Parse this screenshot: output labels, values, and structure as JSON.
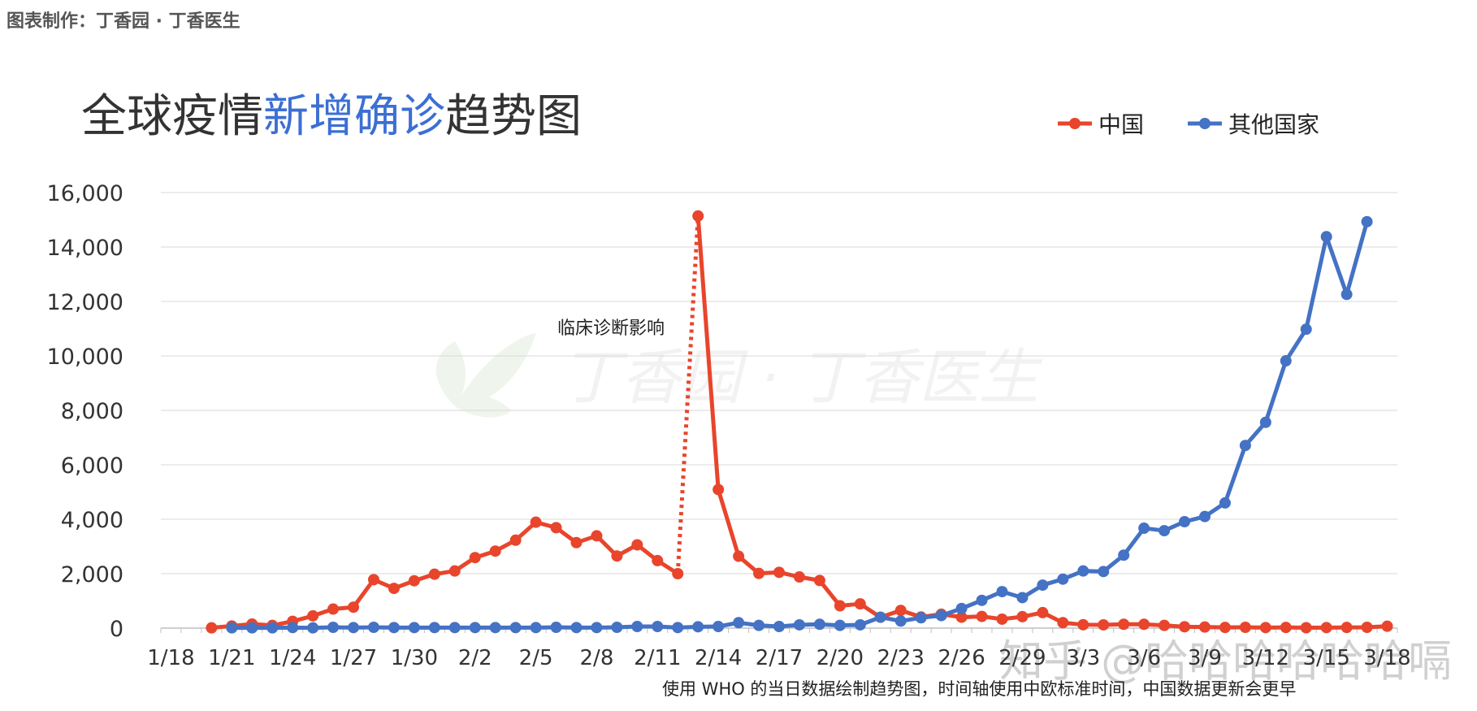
{
  "credit": "图表制作：丁香园 · 丁香医生",
  "title": {
    "part1": "全球疫情",
    "highlight": "新增确诊",
    "part2": "趋势图"
  },
  "legend": [
    {
      "name": "中国",
      "color": "#e8452c"
    },
    {
      "name": "其他国家",
      "color": "#4472c4"
    }
  ],
  "annotation": "临床诊断影响",
  "footnote": "使用 WHO 的当日数据绘制趋势图，时间轴使用中欧标准时间，中国数据更新会更早",
  "watermark": {
    "center": "丁香园 · 丁香医生",
    "corner": "知乎 @哈哈哈哈哈哈嗝"
  },
  "chart_data": {
    "type": "line",
    "title": "全球疫情新增确诊趋势图",
    "x_tick_labels": [
      "1/18",
      "1/21",
      "1/24",
      "1/27",
      "1/30",
      "2/2",
      "2/5",
      "2/8",
      "2/11",
      "2/14",
      "2/17",
      "2/20",
      "2/23",
      "2/26",
      "2/29",
      "3/3",
      "3/6",
      "3/9",
      "3/12",
      "3/15",
      "3/18"
    ],
    "ylim": [
      0,
      16000
    ],
    "y_ticks": [
      "0",
      "2,000",
      "4,000",
      "6,000",
      "8,000",
      "10,000",
      "12,000",
      "14,000",
      "16,000"
    ],
    "grid": true,
    "legend_position": "top-right",
    "series": [
      {
        "name": "中国",
        "color": "#e8452c",
        "start": "1/20",
        "values": [
          10,
          80,
          150,
          100,
          250,
          450,
          700,
          770,
          1780,
          1460,
          1740,
          1980,
          2100,
          2590,
          2830,
          3230,
          3890,
          3690,
          3140,
          3390,
          2650,
          3060,
          2480,
          2000,
          15140,
          5090,
          2640,
          2010,
          2050,
          1880,
          1750,
          820,
          890,
          400,
          650,
          410,
          510,
          400,
          430,
          330,
          420,
          570,
          200,
          125,
          120,
          140,
          140,
          100,
          50,
          40,
          25,
          30,
          20,
          25,
          15,
          20,
          25,
          30,
          70
        ]
      },
      {
        "name": "其他国家",
        "color": "#4472c4",
        "start": "1/21",
        "values": [
          10,
          10,
          10,
          20,
          10,
          30,
          20,
          30,
          20,
          20,
          20,
          20,
          20,
          20,
          20,
          20,
          30,
          20,
          20,
          30,
          60,
          60,
          20,
          50,
          60,
          200,
          100,
          60,
          120,
          140,
          100,
          120,
          400,
          260,
          380,
          460,
          720,
          1020,
          1340,
          1120,
          1580,
          1800,
          2100,
          2080,
          2680,
          3670,
          3580,
          3910,
          4100,
          4600,
          6710,
          7560,
          9820,
          10980,
          14380,
          12260,
          14930
        ]
      }
    ]
  }
}
